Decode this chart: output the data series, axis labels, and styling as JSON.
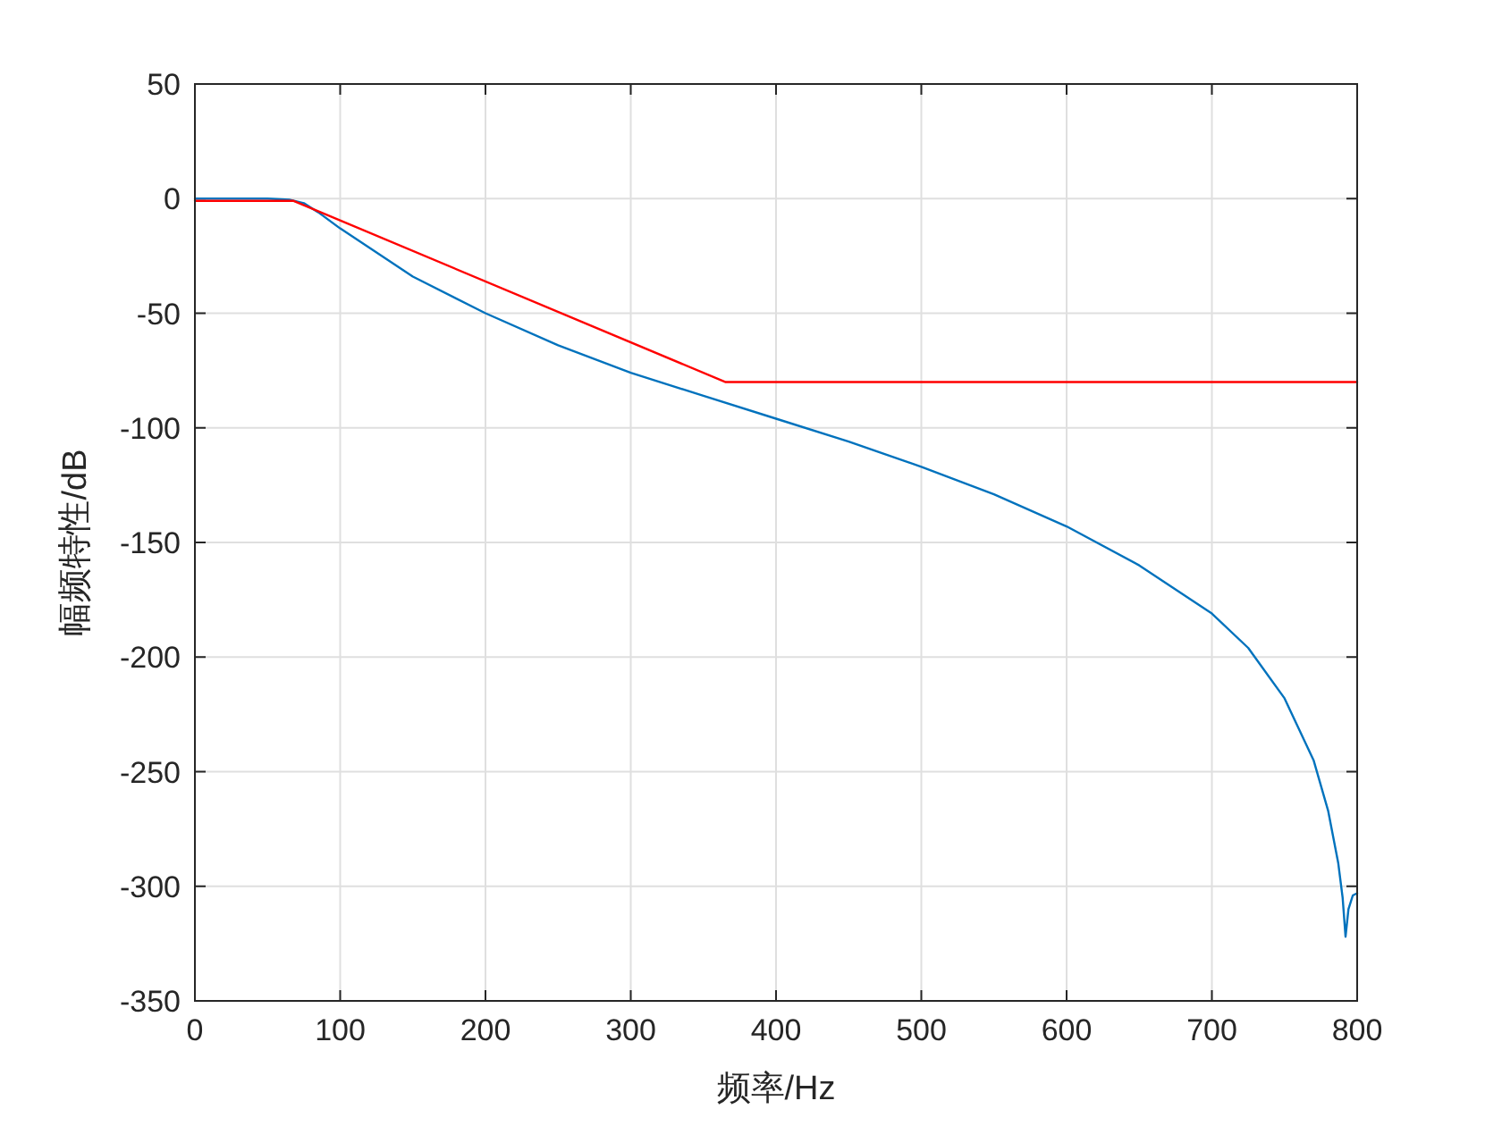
{
  "chart_data": {
    "type": "line",
    "xlabel": "频率/Hz",
    "ylabel": "幅频特性/dB",
    "xlim": [
      0,
      800
    ],
    "xticks": [
      0,
      100,
      200,
      300,
      400,
      500,
      600,
      700,
      800
    ],
    "ylim": [
      -350,
      50
    ],
    "yticks": [
      -350,
      -300,
      -250,
      -200,
      -150,
      -100,
      -50,
      0,
      50
    ],
    "grid": true,
    "line_style": "solid",
    "marker": "none",
    "series": [
      {
        "color": "#0072bd",
        "x": [
          0,
          50,
          65,
          75,
          85,
          100,
          150,
          200,
          250,
          300,
          350,
          400,
          450,
          500,
          550,
          600,
          650,
          700,
          725,
          750,
          770,
          780,
          787,
          790,
          792,
          794,
          797,
          800
        ],
        "values": [
          0,
          0,
          -0.5,
          -2,
          -6,
          -13,
          -34,
          -50,
          -64,
          -76,
          -86,
          -96,
          -106,
          -117,
          -129,
          -143,
          -160,
          -181,
          -196,
          -218,
          -245,
          -267,
          -290,
          -305,
          -322,
          -310,
          -304,
          -303
        ]
      },
      {
        "color": "#ff0000",
        "x": [
          0,
          68,
          365,
          800
        ],
        "values": [
          -1,
          -1,
          -80,
          -80
        ]
      }
    ]
  }
}
